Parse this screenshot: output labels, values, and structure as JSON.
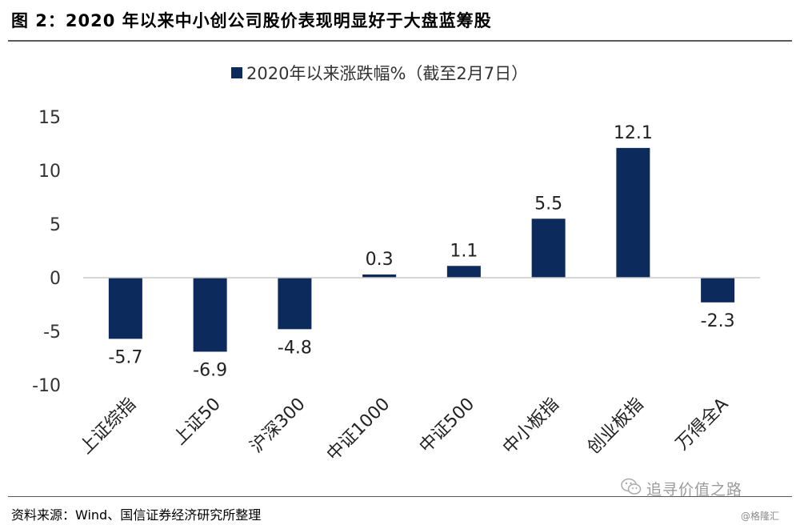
{
  "figure": {
    "title": "图 2：2020 年以来中小创公司股价表现明显好于大盘蓝筹股",
    "source": "资料来源：Wind、国信证券经济研究所整理",
    "watermark": "追寻价值之路",
    "watermark_small": "@格隆汇",
    "watermark_icon": "wechat-icon"
  },
  "chart_data": {
    "type": "bar",
    "title": "",
    "xlabel": "",
    "ylabel": "",
    "categories": [
      "上证综指",
      "上证50",
      "沪深300",
      "中证1000",
      "中证500",
      "中小板指",
      "创业板指",
      "万得全A"
    ],
    "series": [
      {
        "name": "2020年以来涨跌幅%（截至2月7日）",
        "values": [
          -5.7,
          -6.9,
          -4.8,
          0.3,
          1.1,
          5.5,
          12.1,
          -2.3
        ]
      }
    ],
    "data_labels": [
      "-5.7",
      "-6.9",
      "-4.8",
      "0.3",
      "1.1",
      "5.5",
      "12.1",
      "-2.3"
    ],
    "ylim": [
      -10,
      15
    ],
    "yticks": [
      -10,
      -5,
      0,
      5,
      10,
      15
    ],
    "grid": false,
    "legend_position": "top-center",
    "bar_color": "#0d2a5c"
  }
}
